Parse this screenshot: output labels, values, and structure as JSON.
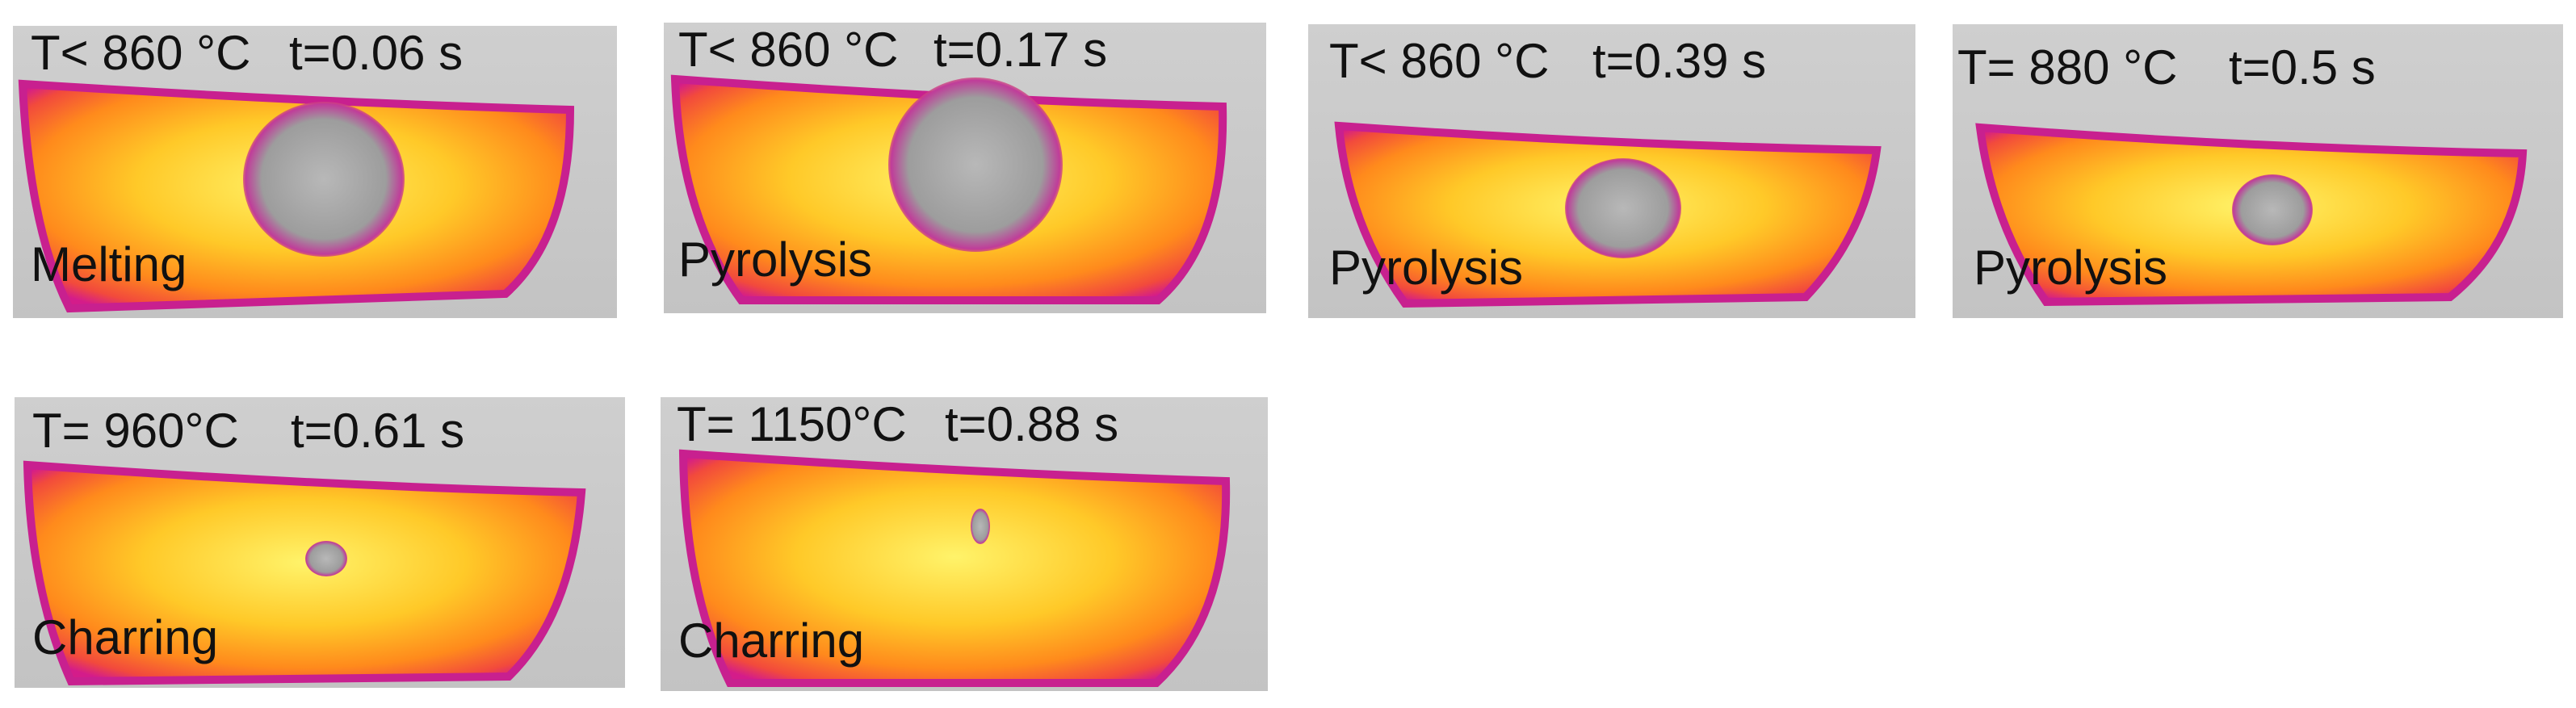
{
  "panels": [
    {
      "temperature": "T< 860 °C",
      "time": "t=0.06 s",
      "stage": "Melting"
    },
    {
      "temperature": "T< 860 °C",
      "time": "t=0.17 s",
      "stage": "Pyrolysis"
    },
    {
      "temperature": "T< 860 °C",
      "time": "t=0.39 s",
      "stage": "Pyrolysis"
    },
    {
      "temperature": "T= 880 °C",
      "time": "t=0.5 s",
      "stage": "Pyrolysis"
    },
    {
      "temperature": "T= 960°C",
      "time": "t=0.61 s",
      "stage": "Charring"
    },
    {
      "temperature": "T= 1150°C",
      "time": "t=0.88 s",
      "stage": "Charring"
    }
  ],
  "colors": {
    "background": "#c6c6c6",
    "hot_core": "#fff36a",
    "warm": "#ffb21e",
    "mid": "#ff6d1a",
    "edge": "#d41c8a",
    "void": "#a8a8a8"
  }
}
